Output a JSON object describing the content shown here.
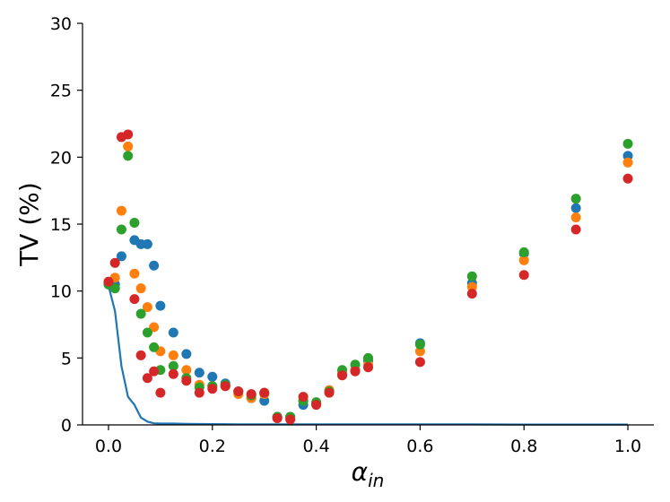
{
  "chart_data": {
    "type": "scatter",
    "title": "",
    "xlabel": "α",
    "xlabel_sub": "in",
    "ylabel": "TV (%)",
    "xlim": [
      -0.05,
      1.05
    ],
    "ylim": [
      0,
      30
    ],
    "xticks": [
      0.0,
      0.2,
      0.4,
      0.6,
      0.8,
      1.0
    ],
    "xtick_labels": [
      "0.0",
      "0.2",
      "0.4",
      "0.6",
      "0.8",
      "1.0"
    ],
    "yticks": [
      0,
      5,
      10,
      15,
      20,
      25,
      30
    ],
    "ytick_labels": [
      "0",
      "5",
      "10",
      "15",
      "20",
      "25",
      "30"
    ],
    "grid": false,
    "legend": "none",
    "line_series": {
      "color": "#1f77b4",
      "x": [
        0.0,
        0.0125,
        0.025,
        0.0375,
        0.05,
        0.0625,
        0.075,
        0.0875,
        0.1,
        0.125,
        0.15,
        0.2,
        0.25,
        0.3,
        0.4,
        0.5,
        0.6,
        0.7,
        0.8,
        0.9,
        1.0
      ],
      "y": [
        10.4,
        8.5,
        4.4,
        2.1,
        1.5,
        0.55,
        0.25,
        0.12,
        0.1,
        0.1,
        0.08,
        0.06,
        0.05,
        0.05,
        0.04,
        0.04,
        0.04,
        0.04,
        0.03,
        0.03,
        0.03
      ]
    },
    "series": [
      {
        "color": "#1f77b4",
        "x": [
          0.0,
          0.0125,
          0.025,
          0.05,
          0.0625,
          0.075,
          0.0875,
          0.1,
          0.125,
          0.15,
          0.175,
          0.2,
          0.225,
          0.25,
          0.275,
          0.3,
          0.325,
          0.35,
          0.375,
          0.4,
          0.425,
          0.45,
          0.475,
          0.5,
          0.6,
          0.7,
          0.8,
          0.9,
          1.0
        ],
        "y": [
          10.5,
          10.5,
          12.6,
          13.8,
          13.5,
          13.5,
          11.9,
          8.9,
          6.9,
          5.3,
          3.9,
          3.6,
          3.1,
          2.5,
          2.0,
          1.8,
          0.6,
          0.6,
          1.5,
          1.6,
          2.5,
          3.8,
          4.1,
          4.8,
          6.1,
          10.6,
          12.8,
          16.2,
          20.1
        ]
      },
      {
        "color": "#ff7f0e",
        "x": [
          0.0,
          0.0125,
          0.025,
          0.0375,
          0.05,
          0.0625,
          0.075,
          0.0875,
          0.1,
          0.125,
          0.15,
          0.175,
          0.2,
          0.225,
          0.25,
          0.275,
          0.3,
          0.325,
          0.35,
          0.375,
          0.4,
          0.425,
          0.45,
          0.475,
          0.5,
          0.6,
          0.7,
          0.8,
          0.9,
          1.0
        ],
        "y": [
          10.6,
          11.0,
          16.0,
          20.8,
          11.3,
          10.2,
          8.8,
          7.3,
          5.5,
          5.2,
          4.1,
          3.0,
          2.9,
          2.9,
          2.3,
          2.0,
          2.3,
          0.5,
          0.5,
          1.8,
          1.6,
          2.6,
          3.9,
          4.1,
          4.5,
          5.5,
          10.3,
          12.3,
          15.5,
          19.6
        ]
      },
      {
        "color": "#2ca02c",
        "x": [
          0.0,
          0.0125,
          0.025,
          0.0375,
          0.05,
          0.0625,
          0.075,
          0.0875,
          0.1,
          0.125,
          0.15,
          0.175,
          0.2,
          0.225,
          0.25,
          0.275,
          0.3,
          0.325,
          0.35,
          0.375,
          0.4,
          0.425,
          0.45,
          0.475,
          0.5,
          0.6,
          0.7,
          0.8,
          0.9,
          1.0
        ],
        "y": [
          10.5,
          10.2,
          14.6,
          20.1,
          15.1,
          8.3,
          6.9,
          5.8,
          4.1,
          4.4,
          3.5,
          2.8,
          2.9,
          3.0,
          2.5,
          2.2,
          2.4,
          0.6,
          0.6,
          1.8,
          1.7,
          2.5,
          4.1,
          4.5,
          5.0,
          6.0,
          11.1,
          12.9,
          16.9,
          21.0
        ]
      },
      {
        "color": "#d62728",
        "x": [
          0.0,
          0.0125,
          0.025,
          0.0375,
          0.05,
          0.0625,
          0.075,
          0.0875,
          0.1,
          0.125,
          0.15,
          0.175,
          0.2,
          0.225,
          0.25,
          0.275,
          0.3,
          0.325,
          0.35,
          0.375,
          0.4,
          0.425,
          0.45,
          0.475,
          0.5,
          0.6,
          0.7,
          0.8,
          0.9,
          1.0
        ],
        "y": [
          10.7,
          12.1,
          21.5,
          21.7,
          9.4,
          5.2,
          3.5,
          4.0,
          2.4,
          3.8,
          3.3,
          2.4,
          2.7,
          2.9,
          2.5,
          2.3,
          2.4,
          0.5,
          0.4,
          2.1,
          1.5,
          2.4,
          3.7,
          4.0,
          4.3,
          4.7,
          9.8,
          11.2,
          14.6,
          18.4
        ]
      }
    ]
  }
}
